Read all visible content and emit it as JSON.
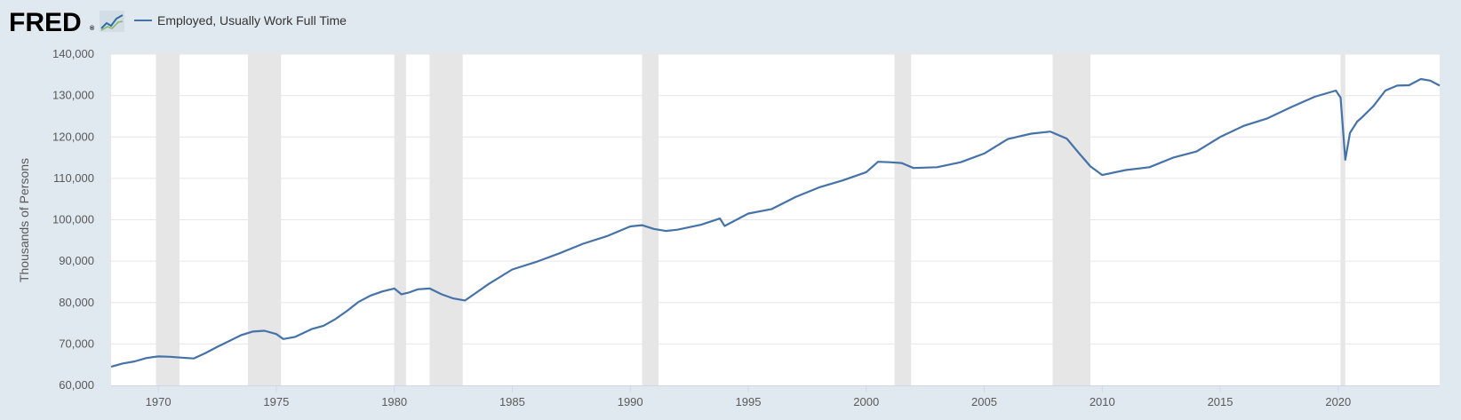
{
  "brand": {
    "logo_text": "FRED",
    "logo_icon": "line-chart-icon",
    "logo_mark": "®"
  },
  "colors": {
    "background": "#e1e9f0",
    "plot_bg": "#ffffff",
    "series": "#4572a7",
    "recession": "#e6e6e6",
    "grid": "#e6e6e6"
  },
  "chart_data": {
    "type": "line",
    "title": "",
    "xlabel": "",
    "ylabel": "Thousands of Persons",
    "legend": {
      "placement": "top-left",
      "entries": [
        "Employed, Usually Work Full Time"
      ]
    },
    "grid": true,
    "xlim": [
      1968.0,
      2024.3
    ],
    "ylim": [
      60000,
      140000
    ],
    "x_ticks": [
      1970,
      1975,
      1980,
      1985,
      1990,
      1995,
      2000,
      2005,
      2010,
      2015,
      2020
    ],
    "x_tick_labels": [
      "1970",
      "1975",
      "1980",
      "1985",
      "1990",
      "1995",
      "2000",
      "2005",
      "2010",
      "2015",
      "2020"
    ],
    "y_ticks": [
      60000,
      70000,
      80000,
      90000,
      100000,
      110000,
      120000,
      130000,
      140000
    ],
    "y_tick_labels": [
      "60,000",
      "70,000",
      "80,000",
      "90,000",
      "100,000",
      "110,000",
      "120,000",
      "130,000",
      "140,000"
    ],
    "recessions": [
      [
        1969.9,
        1970.9
      ],
      [
        1973.8,
        1975.2
      ],
      [
        1980.0,
        1980.5
      ],
      [
        1981.5,
        1982.9
      ],
      [
        1990.5,
        1991.2
      ],
      [
        2001.2,
        2001.9
      ],
      [
        2007.9,
        2009.5
      ],
      [
        2020.1,
        2020.3
      ]
    ],
    "series": [
      {
        "name": "Employed, Usually Work Full Time",
        "x": [
          1968.0,
          1968.5,
          1969.0,
          1969.5,
          1970.0,
          1970.5,
          1971.0,
          1971.5,
          1972.0,
          1972.5,
          1973.0,
          1973.5,
          1974.0,
          1974.5,
          1975.0,
          1975.3,
          1975.8,
          1976.5,
          1977.0,
          1977.5,
          1978.0,
          1978.5,
          1979.0,
          1979.5,
          1980.0,
          1980.3,
          1980.6,
          1981.0,
          1981.5,
          1982.0,
          1982.5,
          1983.0,
          1983.5,
          1984.0,
          1985.0,
          1986.0,
          1987.0,
          1988.0,
          1989.0,
          1990.0,
          1990.5,
          1991.0,
          1991.5,
          1992.0,
          1993.0,
          1993.8,
          1994.0,
          1995.0,
          1996.0,
          1997.0,
          1998.0,
          1999.0,
          2000.0,
          2000.5,
          2001.0,
          2001.5,
          2002.0,
          2003.0,
          2004.0,
          2005.0,
          2006.0,
          2007.0,
          2007.8,
          2008.5,
          2009.0,
          2009.5,
          2010.0,
          2011.0,
          2012.0,
          2013.0,
          2014.0,
          2015.0,
          2016.0,
          2017.0,
          2018.0,
          2019.0,
          2019.9,
          2020.1,
          2020.3,
          2020.5,
          2020.8,
          2021.0,
          2021.5,
          2022.0,
          2022.5,
          2023.0,
          2023.5,
          2023.9,
          2024.3
        ],
        "values": [
          64500,
          65300,
          65800,
          66600,
          67000,
          66900,
          66700,
          66500,
          67800,
          69300,
          70700,
          72100,
          73000,
          73200,
          72400,
          71200,
          71700,
          73600,
          74400,
          76000,
          78000,
          80200,
          81700,
          82700,
          83400,
          82000,
          82400,
          83200,
          83400,
          82000,
          81000,
          80500,
          82500,
          84500,
          88000,
          89800,
          91900,
          94200,
          96000,
          98400,
          98700,
          97800,
          97300,
          97600,
          98800,
          100300,
          98500,
          101500,
          102600,
          105500,
          107800,
          109500,
          111500,
          114000,
          113900,
          113700,
          112500,
          112700,
          113900,
          116000,
          119500,
          120800,
          121300,
          119600,
          116200,
          112900,
          110800,
          112000,
          112700,
          115000,
          116500,
          120000,
          122700,
          124500,
          127200,
          129700,
          131200,
          129500,
          114500,
          121000,
          123700,
          124700,
          127500,
          131200,
          132400,
          132500,
          134000,
          133600,
          132400
        ]
      }
    ]
  }
}
